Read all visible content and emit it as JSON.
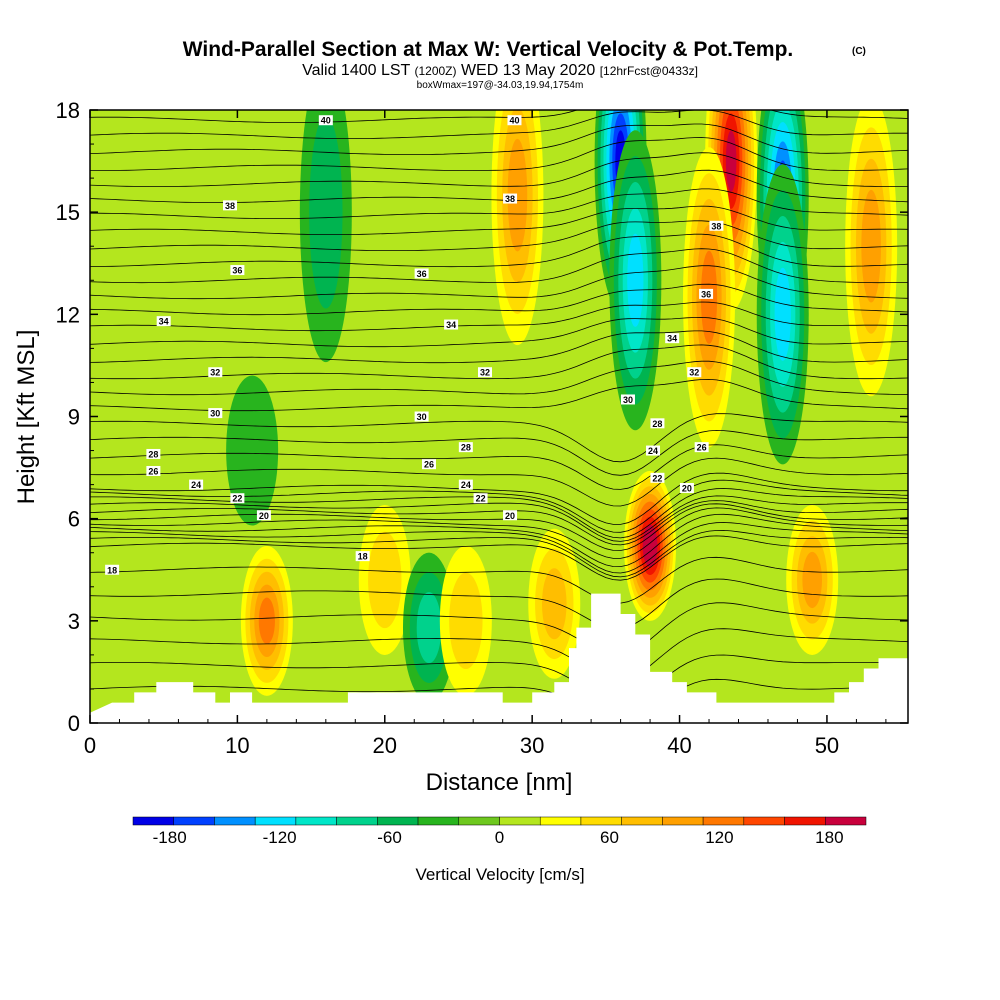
{
  "title": {
    "main": "Wind-Parallel Section at Max W: Vertical Velocity & Pot.Temp.",
    "copyright": "(C)",
    "valid_prefix": "Valid 1400 LST",
    "valid_z": "(1200Z)",
    "valid_date": "WED 13 May 2020",
    "forecast": "[12hrFcst@0433z]",
    "box": "boxWmax=197@-34.03,19.94,1754m"
  },
  "chart_data": {
    "type": "heatmap",
    "xlabel": "Distance [nm]",
    "ylabel": "Height [Kft MSL]",
    "xlim": [
      0,
      55.5
    ],
    "ylim": [
      0,
      18
    ],
    "x_ticks": [
      {
        "value": 0,
        "label": "0"
      },
      {
        "value": 10,
        "label": "10"
      },
      {
        "value": 20,
        "label": "20"
      },
      {
        "value": 30,
        "label": "30"
      },
      {
        "value": 40,
        "label": "40"
      },
      {
        "value": 50,
        "label": "50"
      }
    ],
    "y_ticks": [
      {
        "value": 0,
        "label": "0"
      },
      {
        "value": 3,
        "label": "3"
      },
      {
        "value": 6,
        "label": "6"
      },
      {
        "value": 9,
        "label": "9"
      },
      {
        "value": 12,
        "label": "12"
      },
      {
        "value": 15,
        "label": "15"
      },
      {
        "value": 18,
        "label": "18"
      }
    ],
    "colorbar": {
      "label": "Vertical Velocity [cm/s]",
      "bounds": [
        -200,
        200
      ],
      "tick_labels": [
        {
          "value": -180,
          "label": "-180"
        },
        {
          "value": -120,
          "label": "-120"
        },
        {
          "value": -60,
          "label": "-60"
        },
        {
          "value": 0,
          "label": "0"
        },
        {
          "value": 60,
          "label": "60"
        },
        {
          "value": 120,
          "label": "120"
        },
        {
          "value": 180,
          "label": "180"
        }
      ],
      "colors": [
        "#0000e6",
        "#0040ff",
        "#0090ff",
        "#00e0ff",
        "#00e6c8",
        "#00d28c",
        "#00b450",
        "#28b41e",
        "#6ec81e",
        "#b4e61e",
        "#ffff00",
        "#ffdc00",
        "#ffbe00",
        "#ffa000",
        "#ff7800",
        "#ff4600",
        "#f01400",
        "#c8003c"
      ]
    },
    "topography_kft": [
      [
        0,
        0.3
      ],
      [
        1.5,
        0.6
      ],
      [
        3,
        0.6
      ],
      [
        3,
        0.9
      ],
      [
        4.5,
        0.9
      ],
      [
        4.5,
        1.2
      ],
      [
        6,
        1.2
      ],
      [
        7,
        1.2
      ],
      [
        7,
        0.9
      ],
      [
        8.5,
        0.9
      ],
      [
        8.5,
        0.6
      ],
      [
        9.5,
        0.6
      ],
      [
        9.5,
        0.9
      ],
      [
        11,
        0.9
      ],
      [
        11,
        0.6
      ],
      [
        17.5,
        0.6
      ],
      [
        17.5,
        0.9
      ],
      [
        28,
        0.9
      ],
      [
        28,
        0.6
      ],
      [
        30,
        0.6
      ],
      [
        30,
        0.9
      ],
      [
        31.5,
        0.9
      ],
      [
        31.5,
        1.2
      ],
      [
        32.5,
        1.2
      ],
      [
        32.5,
        2.2
      ],
      [
        33,
        2.2
      ],
      [
        33,
        2.8
      ],
      [
        34,
        2.8
      ],
      [
        34,
        3.8
      ],
      [
        36,
        3.8
      ],
      [
        36,
        3.2
      ],
      [
        37,
        3.2
      ],
      [
        37,
        2.6
      ],
      [
        38,
        2.6
      ],
      [
        38,
        1.5
      ],
      [
        39.5,
        1.5
      ],
      [
        39.5,
        1.2
      ],
      [
        40.5,
        1.2
      ],
      [
        40.5,
        0.9
      ],
      [
        42.5,
        0.9
      ],
      [
        42.5,
        0.6
      ],
      [
        50.5,
        0.6
      ],
      [
        50.5,
        0.9
      ],
      [
        51.5,
        0.9
      ],
      [
        51.5,
        1.2
      ],
      [
        52.5,
        1.2
      ],
      [
        52.5,
        1.6
      ],
      [
        53.5,
        1.6
      ],
      [
        53.5,
        1.9
      ],
      [
        55.5,
        1.9
      ]
    ],
    "w_features": [
      {
        "x": 12,
        "y": 3,
        "w": 100
      },
      {
        "x": 20,
        "y": 4.2,
        "w": 40
      },
      {
        "x": 23,
        "y": 2.8,
        "w": -60
      },
      {
        "x": 25.5,
        "y": 3,
        "w": 50
      },
      {
        "x": 31.5,
        "y": 3.5,
        "w": 60
      },
      {
        "x": 38,
        "y": 5.2,
        "w": 197
      },
      {
        "x": 36,
        "y": 16.5,
        "w": -180
      },
      {
        "x": 37,
        "y": 13,
        "w": -110
      },
      {
        "x": 43.5,
        "y": 16.5,
        "w": 180
      },
      {
        "x": 42,
        "y": 12.5,
        "w": 100
      },
      {
        "x": 47,
        "y": 15.5,
        "w": -150
      },
      {
        "x": 47,
        "y": 12,
        "w": -110
      },
      {
        "x": 49,
        "y": 4.2,
        "w": 90
      },
      {
        "x": 53,
        "y": 14,
        "w": 80
      },
      {
        "x": 16,
        "y": 15,
        "w": -40
      },
      {
        "x": 11,
        "y": 8,
        "w": -30
      },
      {
        "x": 29,
        "y": 15.5,
        "w": 90
      }
    ],
    "isentrope_labels": [
      {
        "x": 1.5,
        "y": 4.5,
        "text": "18"
      },
      {
        "x": 18.5,
        "y": 4.9,
        "text": "18"
      },
      {
        "x": 11.8,
        "y": 6.1,
        "text": "20"
      },
      {
        "x": 28.5,
        "y": 6.1,
        "text": "20"
      },
      {
        "x": 40.5,
        "y": 6.9,
        "text": "20"
      },
      {
        "x": 10,
        "y": 6.6,
        "text": "22"
      },
      {
        "x": 26.5,
        "y": 6.6,
        "text": "22"
      },
      {
        "x": 38.5,
        "y": 7.2,
        "text": "22"
      },
      {
        "x": 7.2,
        "y": 7.0,
        "text": "24"
      },
      {
        "x": 25.5,
        "y": 7.0,
        "text": "24"
      },
      {
        "x": 38.2,
        "y": 8.0,
        "text": "24"
      },
      {
        "x": 4.3,
        "y": 7.4,
        "text": "26"
      },
      {
        "x": 23,
        "y": 7.6,
        "text": "26"
      },
      {
        "x": 41.5,
        "y": 8.1,
        "text": "26"
      },
      {
        "x": 4.3,
        "y": 7.9,
        "text": "28"
      },
      {
        "x": 25.5,
        "y": 8.1,
        "text": "28"
      },
      {
        "x": 38.5,
        "y": 8.8,
        "text": "28"
      },
      {
        "x": 8.5,
        "y": 9.1,
        "text": "30"
      },
      {
        "x": 22.5,
        "y": 9.0,
        "text": "30"
      },
      {
        "x": 36.5,
        "y": 9.5,
        "text": "30"
      },
      {
        "x": 8.5,
        "y": 10.3,
        "text": "32"
      },
      {
        "x": 26.8,
        "y": 10.3,
        "text": "32"
      },
      {
        "x": 41,
        "y": 10.3,
        "text": "32"
      },
      {
        "x": 5,
        "y": 11.8,
        "text": "34"
      },
      {
        "x": 24.5,
        "y": 11.7,
        "text": "34"
      },
      {
        "x": 39.5,
        "y": 11.3,
        "text": "34"
      },
      {
        "x": 10,
        "y": 13.3,
        "text": "36"
      },
      {
        "x": 22.5,
        "y": 13.2,
        "text": "36"
      },
      {
        "x": 41.8,
        "y": 12.6,
        "text": "36"
      },
      {
        "x": 9.5,
        "y": 15.2,
        "text": "38"
      },
      {
        "x": 28.5,
        "y": 15.4,
        "text": "38"
      },
      {
        "x": 42.5,
        "y": 14.6,
        "text": "38"
      },
      {
        "x": 16,
        "y": 17.7,
        "text": "40"
      },
      {
        "x": 28.8,
        "y": 17.7,
        "text": "40"
      }
    ]
  }
}
